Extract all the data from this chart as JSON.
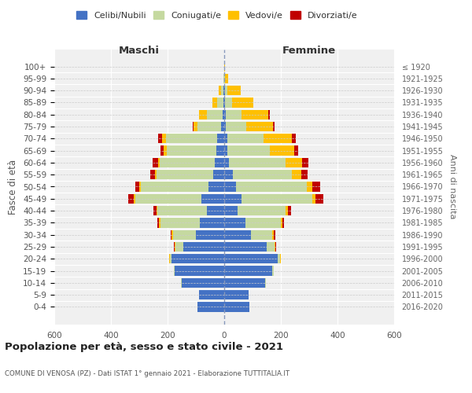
{
  "age_groups": [
    "0-4",
    "5-9",
    "10-14",
    "15-19",
    "20-24",
    "25-29",
    "30-34",
    "35-39",
    "40-44",
    "45-49",
    "50-54",
    "55-59",
    "60-64",
    "65-69",
    "70-74",
    "75-79",
    "80-84",
    "85-89",
    "90-94",
    "95-99",
    "100+"
  ],
  "birth_years": [
    "2016-2020",
    "2011-2015",
    "2006-2010",
    "2001-2005",
    "1996-2000",
    "1991-1995",
    "1986-1990",
    "1981-1985",
    "1976-1980",
    "1971-1975",
    "1966-1970",
    "1961-1965",
    "1956-1960",
    "1951-1955",
    "1946-1950",
    "1941-1945",
    "1936-1940",
    "1931-1935",
    "1926-1930",
    "1921-1925",
    "≤ 1920"
  ],
  "maschi_celibi": [
    95,
    90,
    150,
    175,
    185,
    145,
    100,
    85,
    60,
    80,
    55,
    40,
    34,
    28,
    25,
    10,
    6,
    3,
    2,
    0,
    0
  ],
  "maschi_coniugati": [
    0,
    0,
    2,
    4,
    8,
    28,
    80,
    140,
    175,
    235,
    240,
    200,
    195,
    175,
    180,
    85,
    55,
    22,
    10,
    3,
    1
  ],
  "maschi_vedovi": [
    0,
    0,
    0,
    0,
    1,
    2,
    5,
    5,
    5,
    5,
    5,
    5,
    5,
    10,
    15,
    12,
    28,
    18,
    8,
    1,
    0
  ],
  "maschi_divorziati": [
    0,
    0,
    0,
    0,
    0,
    2,
    5,
    5,
    10,
    20,
    15,
    15,
    18,
    12,
    12,
    5,
    0,
    0,
    0,
    0,
    0
  ],
  "femmine_nubili": [
    90,
    85,
    145,
    170,
    190,
    150,
    95,
    75,
    48,
    60,
    42,
    30,
    18,
    12,
    10,
    5,
    5,
    3,
    2,
    0,
    0
  ],
  "femmine_coniugate": [
    0,
    0,
    2,
    4,
    8,
    28,
    75,
    125,
    170,
    250,
    250,
    210,
    200,
    150,
    130,
    72,
    55,
    25,
    10,
    2,
    0
  ],
  "femmine_vedove": [
    0,
    0,
    0,
    0,
    1,
    2,
    5,
    5,
    6,
    12,
    18,
    32,
    58,
    85,
    100,
    95,
    95,
    75,
    45,
    12,
    2
  ],
  "femmine_divorziate": [
    0,
    0,
    0,
    0,
    0,
    2,
    5,
    6,
    12,
    28,
    28,
    22,
    22,
    15,
    12,
    5,
    5,
    0,
    0,
    0,
    0
  ],
  "colors": {
    "celibi": "#4472c4",
    "coniugati": "#c5d9a0",
    "vedovi": "#ffc000",
    "divorziati": "#c00000"
  },
  "xlim": 600,
  "title": "Popolazione per età, sesso e stato civile - 2021",
  "subtitle": "COMUNE DI VENOSA (PZ) - Dati ISTAT 1° gennaio 2021 - Elaborazione TUTTITALIA.IT",
  "ylabel": "Fasce di età",
  "right_label": "Anni di nascita",
  "left_header": "Maschi",
  "right_header": "Femmine",
  "legend_labels": [
    "Celibi/Nubili",
    "Coniugati/e",
    "Vedovi/e",
    "Divorziati/e"
  ],
  "bg_color": "#f0f0f0"
}
